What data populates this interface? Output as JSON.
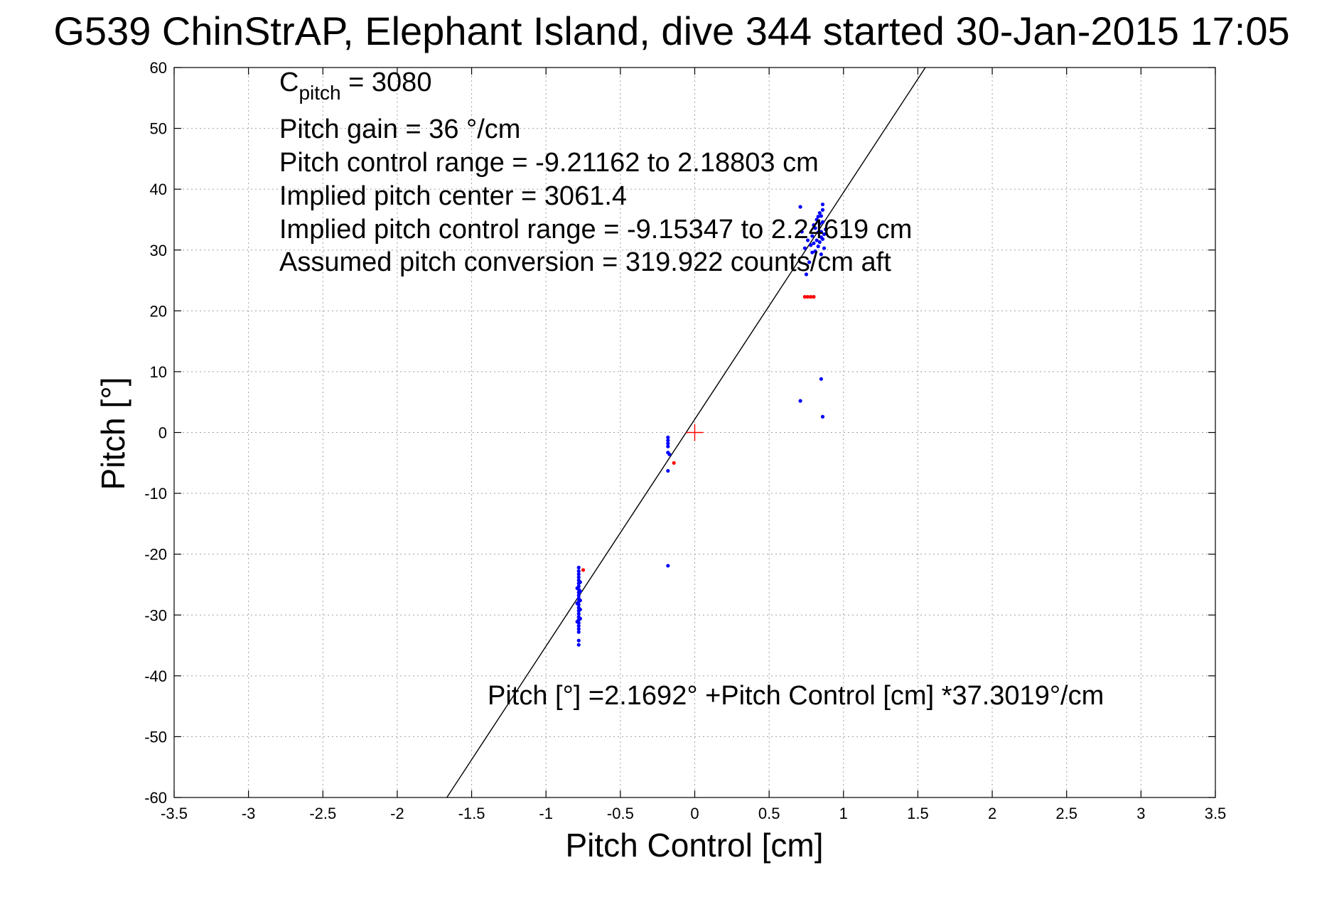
{
  "chart_data": {
    "type": "scatter",
    "title": "G539 ChinStrAP, Elephant Island, dive 344 started 30-Jan-2015 17:05",
    "xlabel": "Pitch Control [cm]",
    "ylabel": "Pitch [°]",
    "xlim": [
      -3.5,
      3.5
    ],
    "ylim": [
      -60,
      60
    ],
    "xticks": [
      -3.5,
      -3,
      -2.5,
      -2,
      -1.5,
      -1,
      -0.5,
      0,
      0.5,
      1,
      1.5,
      2,
      2.5,
      3,
      3.5
    ],
    "yticks": [
      -60,
      -50,
      -40,
      -30,
      -20,
      -10,
      0,
      10,
      20,
      30,
      40,
      50,
      60
    ],
    "xtick_labels": [
      "-3.5",
      "-3",
      "-2.5",
      "-2",
      "-1.5",
      "-1",
      "-0.5",
      "0",
      "0.5",
      "1",
      "1.5",
      "2",
      "2.5",
      "3",
      "3.5"
    ],
    "ytick_labels": [
      "-60",
      "-50",
      "-40",
      "-30",
      "-20",
      "-10",
      "0",
      "10",
      "20",
      "30",
      "40",
      "50",
      "60"
    ],
    "grid": true,
    "annotations": {
      "c_pitch_main": "C",
      "c_pitch_sub": "pitch",
      "c_pitch_value": " = 3080",
      "pitch_gain": "Pitch gain = 36 °/cm",
      "control_range": "Pitch control range = -9.21162 to 2.18803 cm",
      "implied_center": "Implied pitch center = 3061.4",
      "implied_range": "Implied pitch control range = -9.15347 to 2.24619 cm",
      "conversion": "Assumed pitch conversion = 319.922 counts/cm aft",
      "fit_equation": "Pitch [°] =2.1692° +Pitch Control [cm] *37.3019°/cm"
    },
    "fit_line": {
      "intercept": 2.1692,
      "slope": 37.3019,
      "color": "#000000"
    },
    "center_marker": {
      "x": 0,
      "y": 0,
      "color": "#ff0000"
    },
    "series": [
      {
        "color": "#0000ff",
        "marker": "dot",
        "points": [
          [
            -0.78,
            -22.2
          ],
          [
            -0.78,
            -22.8
          ],
          [
            -0.78,
            -23.3
          ],
          [
            -0.78,
            -23.8
          ],
          [
            -0.78,
            -24.3
          ],
          [
            -0.78,
            -24.8
          ],
          [
            -0.78,
            -25.3
          ],
          [
            -0.78,
            -25.8
          ],
          [
            -0.78,
            -26.3
          ],
          [
            -0.78,
            -26.8
          ],
          [
            -0.78,
            -27.3
          ],
          [
            -0.78,
            -27.8
          ],
          [
            -0.78,
            -28.3
          ],
          [
            -0.78,
            -28.8
          ],
          [
            -0.78,
            -29.3
          ],
          [
            -0.78,
            -29.8
          ],
          [
            -0.78,
            -30.3
          ],
          [
            -0.78,
            -30.8
          ],
          [
            -0.78,
            -31.3
          ],
          [
            -0.78,
            -31.8
          ],
          [
            -0.78,
            -32.3
          ],
          [
            -0.78,
            -32.8
          ],
          [
            -0.77,
            -24.6
          ],
          [
            -0.77,
            -26.1
          ],
          [
            -0.77,
            -27.6
          ],
          [
            -0.77,
            -29.1
          ],
          [
            -0.77,
            -30.6
          ],
          [
            -0.79,
            -25.6
          ],
          [
            -0.79,
            -28.1
          ],
          [
            -0.79,
            -31.1
          ],
          [
            -0.78,
            -34.2
          ],
          [
            -0.78,
            -34.9
          ],
          [
            -0.18,
            -0.8
          ],
          [
            -0.18,
            -1.3
          ],
          [
            -0.18,
            -1.8
          ],
          [
            -0.18,
            -2.3
          ],
          [
            -0.18,
            -3.3
          ],
          [
            -0.17,
            -3.6
          ],
          [
            -0.18,
            -6.3
          ],
          [
            -0.18,
            -21.9
          ],
          [
            0.71,
            37.1
          ],
          [
            0.71,
            5.2
          ],
          [
            0.72,
            33.0
          ],
          [
            0.74,
            30.3
          ],
          [
            0.75,
            26.0
          ],
          [
            0.77,
            28.0
          ],
          [
            0.78,
            30.8
          ],
          [
            0.79,
            32.3
          ],
          [
            0.8,
            31.1
          ],
          [
            0.8,
            34.1
          ],
          [
            0.81,
            29.8
          ],
          [
            0.81,
            33.6
          ],
          [
            0.82,
            35.0
          ],
          [
            0.82,
            31.6
          ],
          [
            0.83,
            32.9
          ],
          [
            0.83,
            30.6
          ],
          [
            0.84,
            34.3
          ],
          [
            0.84,
            31.3
          ],
          [
            0.85,
            33.0
          ],
          [
            0.85,
            35.6
          ],
          [
            0.85,
            32.1
          ],
          [
            0.85,
            29.3
          ],
          [
            0.86,
            34.6
          ],
          [
            0.86,
            31.8
          ],
          [
            0.86,
            36.6
          ],
          [
            0.86,
            37.5
          ],
          [
            0.85,
            8.8
          ],
          [
            0.86,
            2.6
          ],
          [
            0.87,
            32.6
          ],
          [
            0.87,
            30.3
          ],
          [
            0.84,
            36.1
          ],
          [
            0.83,
            35.5
          ],
          [
            0.79,
            29.6
          ],
          [
            0.76,
            31.6
          ],
          [
            0.88,
            33.4
          ]
        ]
      },
      {
        "color": "#ff0000",
        "marker": "dot",
        "points": [
          [
            -0.75,
            -22.6
          ],
          [
            -0.14,
            -5.0
          ],
          [
            0.74,
            22.3
          ],
          [
            0.76,
            22.3
          ],
          [
            0.78,
            22.3
          ],
          [
            0.8,
            22.3
          ]
        ]
      }
    ]
  }
}
